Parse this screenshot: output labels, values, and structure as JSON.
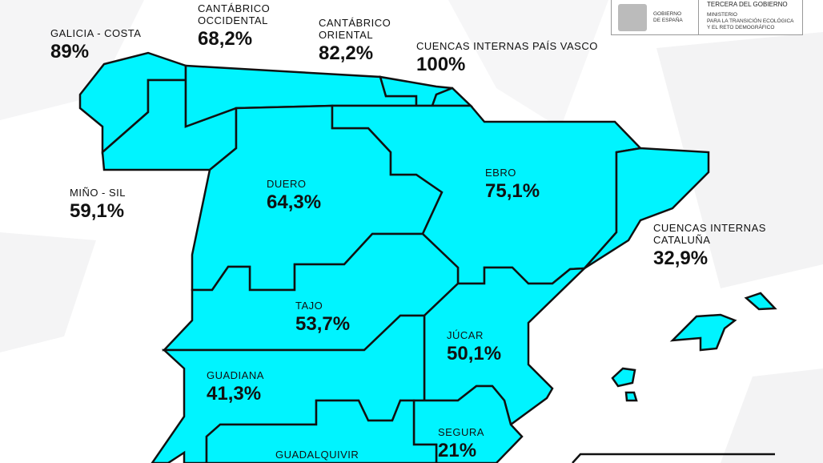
{
  "colors": {
    "region_fill": "#00F4FF",
    "border": "#111111"
  },
  "logo": {
    "gov_line1": "GOBIERNO",
    "gov_line2": "DE ESPAÑA",
    "top_line": "TERCERA DEL GOBIERNO",
    "ministry_line1": "MINISTERIO",
    "ministry_line2": "PARA LA TRANSICIÓN ECOLÓGICA",
    "ministry_line3": "Y EL RETO DEMOGRÁFICO"
  },
  "basins": [
    {
      "name": "GALICIA - COSTA",
      "value": "89%"
    },
    {
      "name": "CANTÁBRICO OCCIDENTAL",
      "value": "68,2%"
    },
    {
      "name": "CANTÁBRICO ORIENTAL",
      "value": "82,2%"
    },
    {
      "name": "CUENCAS INTERNAS PAÍS VASCO",
      "value": "100%"
    },
    {
      "name": "MIÑO - SIL",
      "value": "59,1%"
    },
    {
      "name": "DUERO",
      "value": "64,3%"
    },
    {
      "name": "EBRO",
      "value": "75,1%"
    },
    {
      "name": "CUENCAS INTERNAS CATALUÑA",
      "value": "32,9%"
    },
    {
      "name": "TAJO",
      "value": "53,7%"
    },
    {
      "name": "JÚCAR",
      "value": "50,1%"
    },
    {
      "name": "GUADIANA",
      "value": "41,3%"
    },
    {
      "name": "SEGURA",
      "value": "21%"
    },
    {
      "name": "GUADALQUIVIR",
      "value": ""
    }
  ]
}
